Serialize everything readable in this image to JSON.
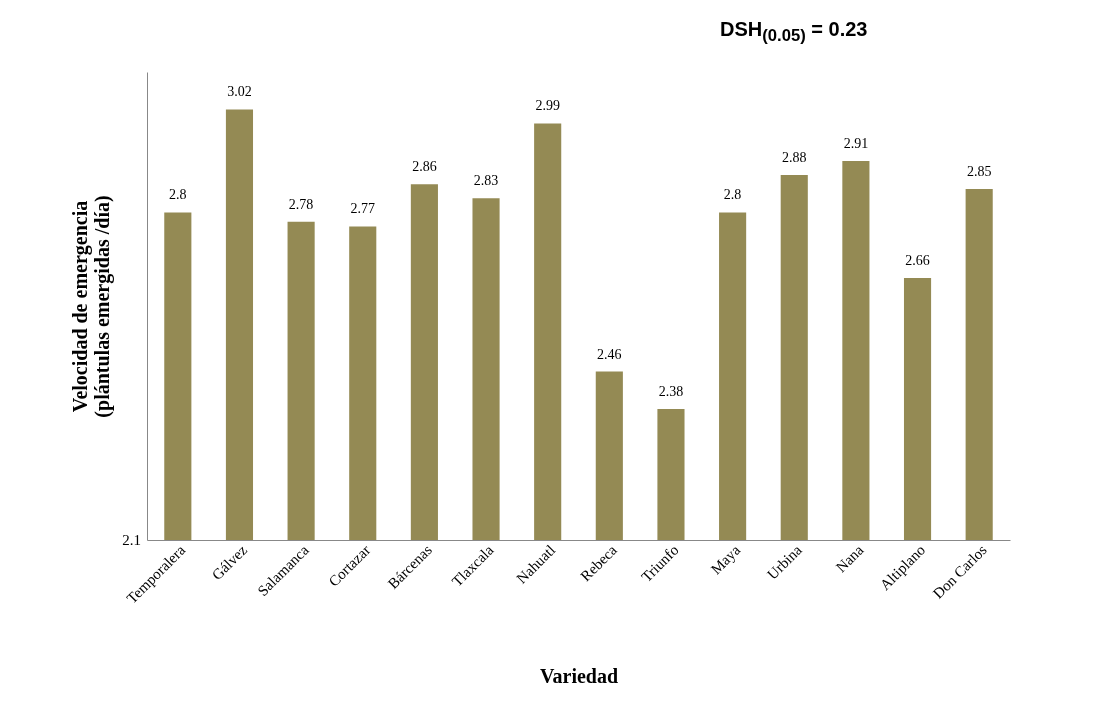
{
  "chart_data": {
    "type": "bar",
    "xlabel": "Variedad",
    "ylabel": "Velocidad de emergencia\n(plántulas emergidas /día)",
    "annotations": [
      "DSH$_{(0.05)}$ = 0.23",
      "2.1"
    ],
    "categories": [
      "Temporalera",
      "Gálvez",
      "Salamanca",
      "Cortazar",
      "Bárcenas",
      "Tlaxcala",
      "Nahuatl",
      "Rebeca",
      "Triunfo",
      "Maya",
      "Urbina",
      "Nana",
      "Altiplano",
      "Don Carlos"
    ],
    "values": [
      2.8,
      3.02,
      2.78,
      2.77,
      2.86,
      2.83,
      2.99,
      2.46,
      2.38,
      2.8,
      2.88,
      2.91,
      2.66,
      2.85
    ],
    "color": "#948a54",
    "ylim": [
      2.1,
      3.1
    ],
    "data_labels": true,
    "grid": false
  }
}
